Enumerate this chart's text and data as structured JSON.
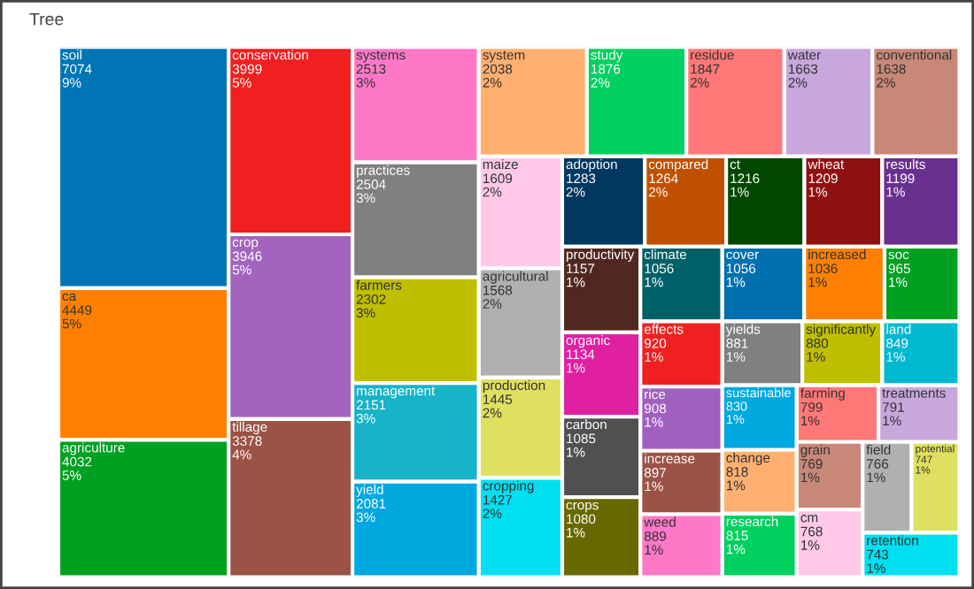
{
  "chart_data": {
    "type": "other",
    "title": "Tree",
    "categories": [
      "soil",
      "ca",
      "agriculture",
      "conservation",
      "crop",
      "tillage",
      "systems",
      "practices",
      "farmers",
      "management",
      "yield",
      "system",
      "study",
      "residue",
      "water",
      "conventional",
      "maize",
      "agricultural",
      "production",
      "cropping",
      "adoption",
      "compared",
      "ct",
      "wheat",
      "results",
      "productivity",
      "organic",
      "carbon",
      "crops",
      "climate",
      "cover",
      "increased",
      "soc",
      "effects",
      "rice",
      "increase",
      "weed",
      "yields",
      "significantly",
      "land",
      "sustainable",
      "change",
      "research",
      "farming",
      "treatments",
      "grain",
      "cm",
      "field",
      "potential",
      "retention"
    ],
    "values": [
      7074,
      4449,
      4032,
      3999,
      3946,
      3378,
      2513,
      2504,
      2302,
      2151,
      2081,
      2038,
      1876,
      1847,
      1663,
      1638,
      1609,
      1568,
      1445,
      1427,
      1283,
      1264,
      1216,
      1209,
      1199,
      1157,
      1134,
      1085,
      1080,
      1056,
      1056,
      1036,
      965,
      920,
      908,
      897,
      889,
      881,
      880,
      849,
      830,
      818,
      815,
      799,
      791,
      769,
      768,
      766,
      747,
      743
    ],
    "value_labels": [
      "7074\n9%",
      "4449\n5%",
      "4032\n5%",
      "3999\n5%",
      "3946\n5%",
      "3378\n4%",
      "2513\n3%",
      "2504\n3%",
      "2302\n3%",
      "2151\n3%",
      "2081\n3%",
      "2038\n2%",
      "1876\n2%",
      "1847\n2%",
      "1663\n2%",
      "1638\n2%",
      "1609\n2%",
      "1568\n2%",
      "1445\n2%",
      "1427\n2%",
      "1283\n2%",
      "1264\n2%",
      "1216\n1%",
      "1209\n1%",
      "1199\n1%",
      "1157\n1%",
      "1134\n1%",
      "1085\n1%",
      "1080\n1%",
      "1056\n1%",
      "1056\n1%",
      "1036\n1%",
      "965\n1%",
      "920\n1%",
      "908\n1%",
      "897\n1%",
      "889\n1%",
      "881\n1%",
      "880\n1%",
      "849\n1%",
      "830\n1%",
      "818\n1%",
      "815\n1%",
      "799\n1%",
      "791\n1%",
      "769\n1%",
      "768\n1%",
      "766\n1%",
      "747\n1%",
      "743\n1%"
    ],
    "colors": [
      "#0075b5",
      "#ff8000",
      "#00a020",
      "#f02020",
      "#a264bf",
      "#9b5346",
      "#ff78c8",
      "#808080",
      "#bfbf00",
      "#17b3c8",
      "#00a8e0",
      "#ffb070",
      "#00d060",
      "#ff7878",
      "#c8a8dc",
      "#c88878",
      "#ffc8e8",
      "#b0b0b0",
      "#e0e060",
      "#00e0f0",
      "#003860",
      "#c05000",
      "#004800",
      "#901010",
      "#6a3090",
      "#502820",
      "#e020a0",
      "#505050",
      "#686800",
      "#006068",
      "#0070b0",
      "#ff8000",
      "#00a020",
      "#f02020",
      "#a060c0",
      "#9b5346",
      "#ff78c8",
      "#808080",
      "#bfbf00",
      "#00b8d0",
      "#00a8e0",
      "#ffb070",
      "#00d060",
      "#ff7878",
      "#c8a8dc",
      "#c88878",
      "#ffc8e8",
      "#b0b0b0",
      "#e0e060",
      "#00e0f0"
    ]
  }
}
